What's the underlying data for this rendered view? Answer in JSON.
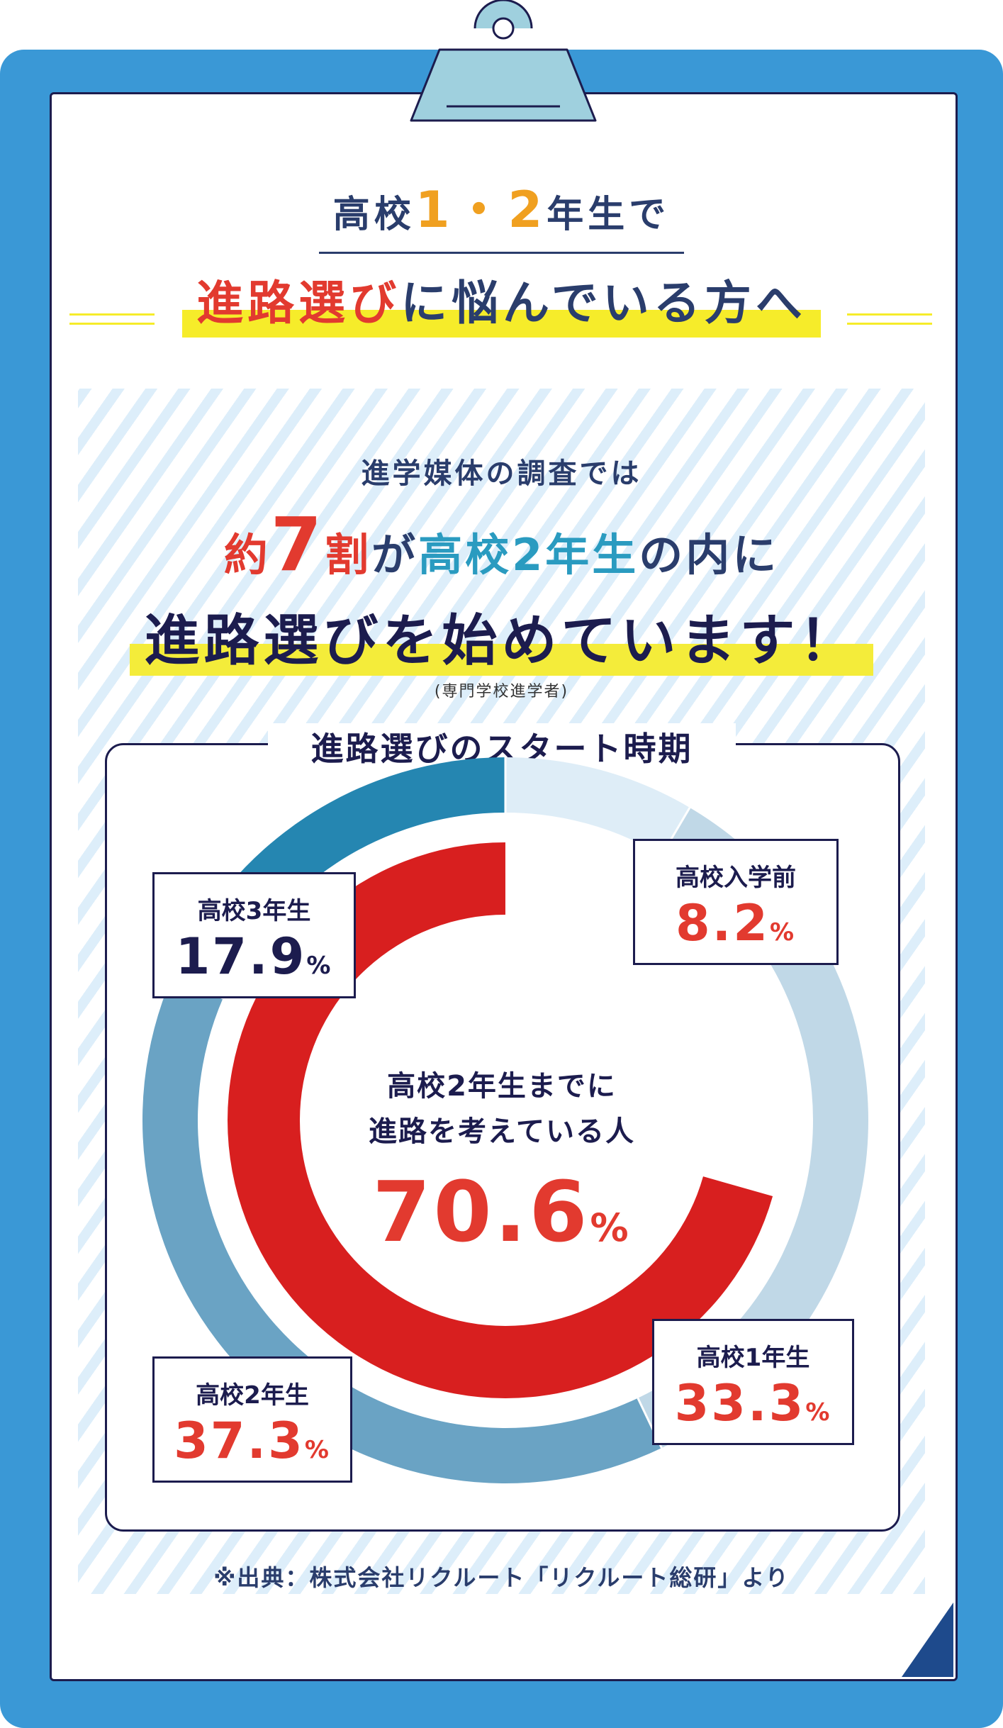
{
  "heading": {
    "line1_pre": "高校",
    "line1_nums": "1・2",
    "line1_post": "年生で",
    "line2_red": "進路選び",
    "line2_rest": "に悩んでいる方へ"
  },
  "intro": {
    "line1": "進学媒体の調査では",
    "line2_a": "約",
    "line2_num": "7",
    "line2_b": "割",
    "line2_c": "が",
    "line2_d": "高校2年生",
    "line2_e": "の内に",
    "line3": "進路選びを始めています！",
    "line4": "(専門学校進学者)"
  },
  "chart_data": {
    "type": "pie",
    "title": "進路選びのスタート時期",
    "categories": [
      "高校入学前",
      "高校1年生",
      "高校2年生",
      "高校3年生"
    ],
    "values": [
      8.2,
      33.3,
      37.3,
      17.9
    ],
    "unit": "%",
    "colors": [
      "#deedf7",
      "#c0d8e7",
      "#6aa3c4",
      "#2586b1"
    ],
    "summary": {
      "label_line1": "高校2年生までに",
      "label_line2": "進路を考えている人",
      "value": "70.6",
      "unit": "%",
      "fraction": 0.706,
      "color": "#d81f1f"
    },
    "callout_colors": [
      "#e23a2f",
      "#e23a2f",
      "#e23a2f",
      "#1c1c4e"
    ]
  },
  "source": "※出典：株式会社リクルート「リクルート総研」より"
}
